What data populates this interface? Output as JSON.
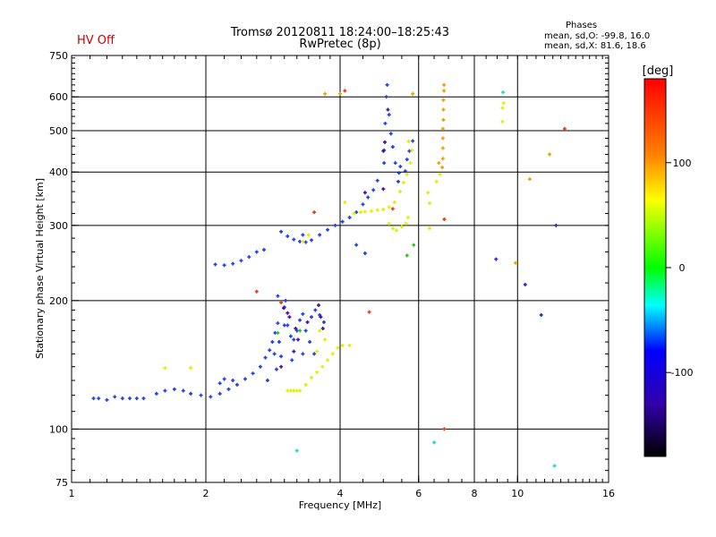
{
  "header": {
    "status": "HV Off",
    "status_color": "#cc0000",
    "title_line1": "Tromsø 20120811 18:24:00–18:25:43",
    "title_line2": "RwPretec (8p)",
    "stats_heading": "Phases",
    "stats_o": "mean, sd,O: -99.8, 16.0",
    "stats_x": "mean, sd,X: 81.6, 18.6"
  },
  "chart_data": {
    "type": "scatter",
    "xlabel": "Frequency [MHz]",
    "ylabel": "Stationary phase Virtual Height [km]",
    "xscale": "log",
    "yscale": "log",
    "xlim": [
      1,
      16
    ],
    "ylim": [
      75,
      750
    ],
    "x_ticks": [
      1,
      2,
      4,
      6,
      8,
      10,
      16
    ],
    "y_ticks": [
      75,
      100,
      200,
      300,
      400,
      500,
      600,
      750
    ],
    "x_grid": [
      2,
      4,
      6,
      8,
      10,
      16
    ],
    "y_grid": [
      100,
      200,
      300,
      400,
      500,
      600
    ],
    "colorbar": {
      "label": "[deg]",
      "range": [
        -180,
        180
      ],
      "ticks": [
        100,
        0,
        -100
      ],
      "colors": [
        "#ff0000",
        "#ff8000",
        "#ffff00",
        "#00ff00",
        "#00ffff",
        "#0000ff",
        "#3300aa",
        "#000000"
      ]
    },
    "series": [
      {
        "color": "#1f3fe8",
        "points": [
          [
            1.12,
            118
          ],
          [
            1.15,
            118
          ],
          [
            1.2,
            117
          ],
          [
            1.25,
            119
          ],
          [
            1.3,
            118
          ],
          [
            1.35,
            118
          ],
          [
            1.4,
            118
          ],
          [
            1.45,
            118
          ],
          [
            1.55,
            121
          ],
          [
            1.62,
            123
          ],
          [
            1.7,
            124
          ],
          [
            1.78,
            123
          ],
          [
            1.85,
            121
          ],
          [
            1.95,
            120
          ],
          [
            2.05,
            119
          ],
          [
            2.15,
            121
          ],
          [
            2.25,
            124
          ],
          [
            2.35,
            127
          ],
          [
            2.45,
            131
          ],
          [
            2.55,
            135
          ],
          [
            2.65,
            140
          ],
          [
            2.72,
            147
          ],
          [
            2.78,
            153
          ],
          [
            2.82,
            160
          ],
          [
            2.86,
            168
          ],
          [
            2.9,
            177
          ],
          [
            2.15,
            128
          ],
          [
            2.2,
            131
          ],
          [
            2.3,
            130
          ],
          [
            2.1,
            243
          ],
          [
            2.2,
            242
          ],
          [
            2.3,
            244
          ],
          [
            2.4,
            248
          ],
          [
            2.5,
            253
          ],
          [
            2.6,
            260
          ],
          [
            2.7,
            263
          ],
          [
            2.95,
            290
          ],
          [
            3.05,
            283
          ],
          [
            3.15,
            278
          ],
          [
            3.25,
            275
          ],
          [
            3.35,
            274
          ],
          [
            3.45,
            277
          ],
          [
            3.6,
            285
          ],
          [
            3.75,
            293
          ],
          [
            3.9,
            300
          ],
          [
            4.05,
            306
          ],
          [
            4.2,
            313
          ],
          [
            4.35,
            322
          ],
          [
            4.5,
            336
          ],
          [
            4.62,
            349
          ],
          [
            4.75,
            363
          ],
          [
            4.85,
            382
          ],
          [
            5.02,
            420
          ],
          [
            5.02,
            450
          ],
          [
            5.05,
            520
          ],
          [
            5.08,
            600
          ],
          [
            5.1,
            640
          ],
          [
            5.15,
            545
          ],
          [
            5.2,
            492
          ],
          [
            5.25,
            458
          ],
          [
            5.32,
            420
          ],
          [
            5.4,
            380
          ],
          [
            5.6,
            402
          ],
          [
            5.65,
            428
          ],
          [
            5.72,
            448
          ],
          [
            5.82,
            473
          ],
          [
            4.35,
            270
          ],
          [
            4.55,
            258
          ],
          [
            3.3,
            285
          ],
          [
            3.0,
            193
          ],
          [
            3.02,
            200
          ],
          [
            3.05,
            175
          ],
          [
            3.1,
            165
          ],
          [
            3.15,
            162
          ],
          [
            3.2,
            170
          ],
          [
            3.25,
            180
          ],
          [
            3.3,
            186
          ],
          [
            3.35,
            170
          ],
          [
            3.45,
            183
          ],
          [
            3.52,
            190
          ],
          [
            3.6,
            185
          ],
          [
            3.68,
            178
          ],
          [
            3.42,
            160
          ],
          [
            3.5,
            150
          ],
          [
            3.3,
            150
          ],
          [
            3.12,
            145
          ],
          [
            2.95,
            148
          ],
          [
            2.88,
            138
          ],
          [
            2.75,
            130
          ],
          [
            2.85,
            150
          ],
          [
            2.92,
            160
          ],
          [
            3.0,
            175
          ],
          [
            2.9,
            205
          ],
          [
            5.42,
            398
          ],
          [
            5.46,
            412
          ]
        ]
      },
      {
        "color": "#4a0fa8",
        "points": [
          [
            2.99,
            192
          ],
          [
            3.05,
            187
          ],
          [
            3.08,
            183
          ],
          [
            3.18,
            172
          ],
          [
            3.22,
            162
          ],
          [
            3.38,
            178
          ],
          [
            3.58,
            195
          ],
          [
            3.62,
            183
          ],
          [
            3.66,
            172
          ],
          [
            5.0,
            448
          ],
          [
            5.04,
            470
          ],
          [
            5.12,
            560
          ],
          [
            5.0,
            365
          ],
          [
            4.55,
            358
          ],
          [
            2.95,
            140
          ],
          [
            3.15,
            152
          ]
        ]
      },
      {
        "color": "#e0f000",
        "points": [
          [
            3.05,
            123
          ],
          [
            3.1,
            123
          ],
          [
            3.15,
            123
          ],
          [
            3.2,
            123
          ],
          [
            3.25,
            123
          ],
          [
            3.35,
            127
          ],
          [
            3.45,
            132
          ],
          [
            3.55,
            136
          ],
          [
            3.65,
            140
          ],
          [
            3.75,
            145
          ],
          [
            3.85,
            150
          ],
          [
            3.95,
            155
          ],
          [
            4.05,
            157
          ],
          [
            4.2,
            157
          ],
          [
            3.6,
            170
          ],
          [
            3.7,
            162
          ],
          [
            3.55,
            152
          ],
          [
            4.3,
            320
          ],
          [
            4.45,
            322
          ],
          [
            4.55,
            323
          ],
          [
            4.7,
            324
          ],
          [
            4.85,
            326
          ],
          [
            5.0,
            327
          ],
          [
            5.15,
            331
          ],
          [
            5.3,
            340
          ],
          [
            5.45,
            360
          ],
          [
            5.55,
            378
          ],
          [
            5.65,
            395
          ],
          [
            5.75,
            420
          ],
          [
            5.8,
            450
          ],
          [
            5.7,
            472
          ],
          [
            5.15,
            303
          ],
          [
            5.25,
            295
          ],
          [
            5.35,
            292
          ],
          [
            5.5,
            298
          ],
          [
            5.62,
            303
          ],
          [
            5.68,
            313
          ],
          [
            4.1,
            340
          ],
          [
            3.3,
            275
          ],
          [
            3.4,
            285
          ],
          [
            1.62,
            139
          ],
          [
            1.85,
            139
          ],
          [
            6.35,
            295
          ],
          [
            6.35,
            338
          ],
          [
            6.3,
            358
          ],
          [
            6.58,
            380
          ],
          [
            6.7,
            395
          ],
          [
            9.25,
            525
          ],
          [
            9.25,
            565
          ],
          [
            9.3,
            580
          ]
        ]
      },
      {
        "color": "#f0a000",
        "points": [
          [
            6.78,
            410
          ],
          [
            6.8,
            430
          ],
          [
            6.8,
            455
          ],
          [
            6.8,
            480
          ],
          [
            6.8,
            505
          ],
          [
            6.82,
            530
          ],
          [
            6.82,
            560
          ],
          [
            6.82,
            590
          ],
          [
            6.84,
            620
          ],
          [
            6.84,
            640
          ],
          [
            6.66,
            420
          ],
          [
            3.7,
            610
          ],
          [
            4.0,
            610
          ],
          [
            5.82,
            610
          ],
          [
            9.9,
            245
          ],
          [
            10.65,
            385
          ],
          [
            11.8,
            440
          ]
        ]
      },
      {
        "color": "#e04010",
        "points": [
          [
            4.1,
            620
          ],
          [
            3.5,
            322
          ],
          [
            5.25,
            328
          ],
          [
            6.85,
            100
          ],
          [
            6.85,
            310
          ],
          [
            12.75,
            505
          ],
          [
            4.65,
            188
          ],
          [
            2.6,
            210
          ],
          [
            2.95,
            198
          ]
        ]
      },
      {
        "color": "#30c020",
        "points": [
          [
            2.9,
            168
          ],
          [
            3.25,
            170
          ],
          [
            5.65,
            255
          ],
          [
            5.85,
            270
          ]
        ]
      },
      {
        "color": "#20d8d0",
        "points": [
          [
            3.2,
            89
          ],
          [
            6.5,
            93
          ],
          [
            9.28,
            615
          ],
          [
            12.1,
            82
          ]
        ]
      },
      {
        "color": "#2030d0",
        "points": [
          [
            8.95,
            250
          ],
          [
            10.4,
            218
          ],
          [
            11.3,
            185
          ],
          [
            12.2,
            300
          ]
        ]
      }
    ]
  }
}
